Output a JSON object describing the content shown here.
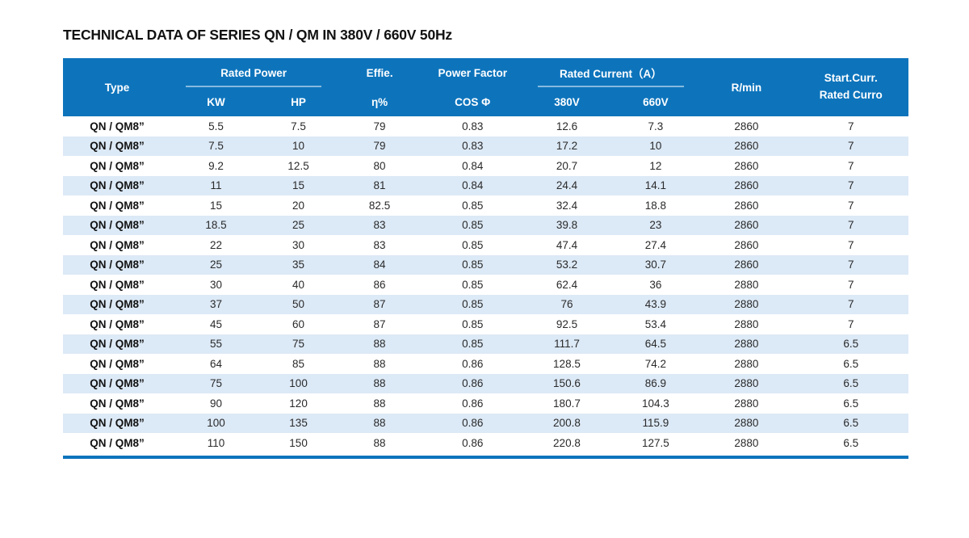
{
  "page_title": "TECHNICAL DATA OF SERIES QN / QM IN 380V / 660V 50Hz",
  "colors": {
    "header_blue": "#0d74bc",
    "stripe_blue": "#dce9f6",
    "border_blue": "#0d74bc",
    "text_dark": "#2a2a2a"
  },
  "table": {
    "header": {
      "type": "Type",
      "rated_power": "Rated Power",
      "kw": "KW",
      "hp": "HP",
      "effie": "Effie.",
      "eta": "η%",
      "power_factor": "Power Factor",
      "cos_phi": "COS Φ",
      "rated_current": "Rated Current（A）",
      "v380": "380V",
      "v660": "660V",
      "rmin": "R/min",
      "start_line1": "Start.Curr.",
      "start_line2": "Rated Curro"
    },
    "col_keys": [
      "type",
      "kw",
      "hp",
      "eta",
      "cos",
      "a380",
      "a660",
      "rmin",
      "start"
    ],
    "rows": [
      [
        "QN / QM8”",
        "5.5",
        "7.5",
        "79",
        "0.83",
        "12.6",
        "7.3",
        "2860",
        "7"
      ],
      [
        "QN / QM8”",
        "7.5",
        "10",
        "79",
        "0.83",
        "17.2",
        "10",
        "2860",
        "7"
      ],
      [
        "QN / QM8”",
        "9.2",
        "12.5",
        "80",
        "0.84",
        "20.7",
        "12",
        "2860",
        "7"
      ],
      [
        "QN / QM8”",
        "11",
        "15",
        "81",
        "0.84",
        "24.4",
        "14.1",
        "2860",
        "7"
      ],
      [
        "QN / QM8”",
        "15",
        "20",
        "82.5",
        "0.85",
        "32.4",
        "18.8",
        "2860",
        "7"
      ],
      [
        "QN / QM8”",
        "18.5",
        "25",
        "83",
        "0.85",
        "39.8",
        "23",
        "2860",
        "7"
      ],
      [
        "QN / QM8”",
        "22",
        "30",
        "83",
        "0.85",
        "47.4",
        "27.4",
        "2860",
        "7"
      ],
      [
        "QN / QM8”",
        "25",
        "35",
        "84",
        "0.85",
        "53.2",
        "30.7",
        "2860",
        "7"
      ],
      [
        "QN / QM8”",
        "30",
        "40",
        "86",
        "0.85",
        "62.4",
        "36",
        "2880",
        "7"
      ],
      [
        "QN / QM8”",
        "37",
        "50",
        "87",
        "0.85",
        "76",
        "43.9",
        "2880",
        "7"
      ],
      [
        "QN / QM8”",
        "45",
        "60",
        "87",
        "0.85",
        "92.5",
        "53.4",
        "2880",
        "7"
      ],
      [
        "QN / QM8”",
        "55",
        "75",
        "88",
        "0.85",
        "111.7",
        "64.5",
        "2880",
        "6.5"
      ],
      [
        "QN / QM8”",
        "64",
        "85",
        "88",
        "0.86",
        "128.5",
        "74.2",
        "2880",
        "6.5"
      ],
      [
        "QN / QM8”",
        "75",
        "100",
        "88",
        "0.86",
        "150.6",
        "86.9",
        "2880",
        "6.5"
      ],
      [
        "QN / QM8”",
        "90",
        "120",
        "88",
        "0.86",
        "180.7",
        "104.3",
        "2880",
        "6.5"
      ],
      [
        "QN / QM8”",
        "100",
        "135",
        "88",
        "0.86",
        "200.8",
        "115.9",
        "2880",
        "6.5"
      ],
      [
        "QN / QM8”",
        "110",
        "150",
        "88",
        "0.86",
        "220.8",
        "127.5",
        "2880",
        "6.5"
      ]
    ]
  }
}
